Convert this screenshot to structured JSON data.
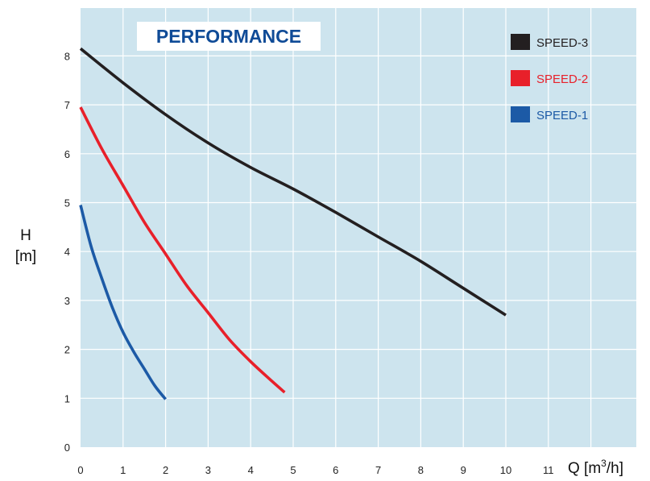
{
  "chart_data": {
    "type": "line",
    "title": "PERFORMANCE",
    "xlabel": "Q [m³/h]",
    "xlabel_main": "Q [m",
    "xlabel_sup": "3",
    "xlabel_tail": "/h]",
    "ylabel_line1": "H",
    "ylabel_line2": "[m]",
    "xlim": [
      0,
      12
    ],
    "ylim": [
      0,
      9
    ],
    "x_ticks": [
      "0",
      "1",
      "2",
      "3",
      "4",
      "5",
      "6",
      "7",
      "8",
      "9",
      "10",
      "11"
    ],
    "y_ticks": [
      "0",
      "1",
      "2",
      "3",
      "4",
      "5",
      "6",
      "7",
      "8"
    ],
    "grid": true,
    "background_color": "#cde4ee",
    "grid_color": "#ffffff",
    "legend_position": "top-right",
    "series": [
      {
        "name": "SPEED-3",
        "color": "#231f20",
        "x": [
          0,
          1,
          2,
          3,
          4,
          5,
          6,
          7,
          8,
          9,
          10
        ],
        "y": [
          8.15,
          7.45,
          6.8,
          6.22,
          5.72,
          5.28,
          4.8,
          4.3,
          3.8,
          3.25,
          2.7
        ]
      },
      {
        "name": "SPEED-2",
        "color": "#e8202a",
        "x": [
          0,
          0.5,
          1,
          1.5,
          2,
          2.5,
          3,
          3.5,
          4,
          4.5,
          4.8
        ],
        "y": [
          6.95,
          6.1,
          5.35,
          4.6,
          3.95,
          3.3,
          2.75,
          2.2,
          1.75,
          1.35,
          1.12
        ]
      },
      {
        "name": "SPEED-1",
        "color": "#1c5aa6",
        "x": [
          0,
          0.25,
          0.5,
          0.75,
          1,
          1.25,
          1.5,
          1.75,
          2
        ],
        "y": [
          4.95,
          4.1,
          3.45,
          2.85,
          2.35,
          1.95,
          1.6,
          1.25,
          0.98
        ]
      }
    ]
  }
}
